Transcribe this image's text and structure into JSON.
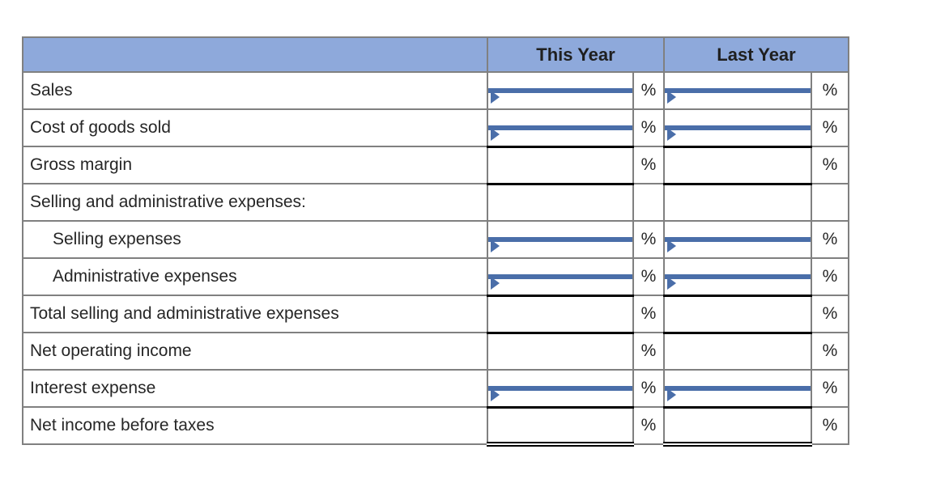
{
  "table": {
    "header": {
      "blank": "",
      "this_year": "This Year",
      "last_year": "Last Year"
    },
    "percent": "%",
    "rows": [
      {
        "label": "Sales",
        "type": "input",
        "this_year_value": "",
        "last_year_value": ""
      },
      {
        "label": "Cost of goods sold",
        "type": "input",
        "this_year_value": "",
        "last_year_value": ""
      },
      {
        "label": "Gross margin",
        "type": "computed"
      },
      {
        "label": "Selling and administrative expenses:",
        "type": "section-header"
      },
      {
        "label": "Selling expenses",
        "type": "input",
        "this_year_value": "",
        "last_year_value": ""
      },
      {
        "label": "Administrative expenses",
        "type": "input",
        "this_year_value": "",
        "last_year_value": ""
      },
      {
        "label": "Total selling and administrative expenses",
        "type": "computed"
      },
      {
        "label": "Net operating income",
        "type": "computed"
      },
      {
        "label": "Interest expense",
        "type": "input",
        "this_year_value": "",
        "last_year_value": ""
      },
      {
        "label": "Net income before taxes",
        "type": "computed"
      }
    ]
  },
  "colors": {
    "header_bg": "#8EA9DB",
    "input_border": "#4A6EA9",
    "grid_line": "#808080",
    "accounting_rule": "#000000",
    "text": "#262626"
  }
}
